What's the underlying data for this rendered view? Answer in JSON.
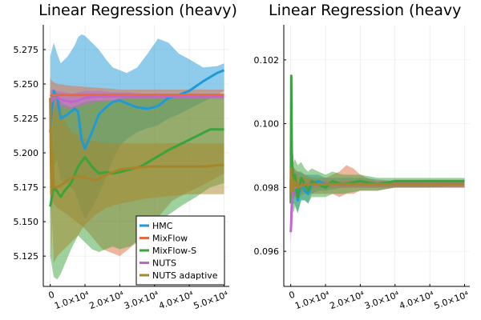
{
  "colors": {
    "HMC": "#1f9ad9",
    "MixFlow": "#e26b3f",
    "MixFlow-S": "#3ba33b",
    "NUTS": "#c264cf",
    "NUTS adaptive": "#a7852a"
  },
  "chart_data": [
    {
      "type": "line",
      "title": "Linear Regression (heavy)",
      "xlim": [
        -2000,
        51500
      ],
      "ylim": [
        5.103,
        5.293
      ],
      "x_ticks": [
        0,
        10000,
        20000,
        30000,
        40000,
        50000
      ],
      "x_tick_labels": [
        "0",
        "1.0×10⁴",
        "2.0×10⁴",
        "3.0×10⁴",
        "4.0×10⁴",
        "5.0×10⁴"
      ],
      "y_ticks": [
        5.125,
        5.15,
        5.175,
        5.2,
        5.225,
        5.25,
        5.275
      ],
      "y_tick_labels": [
        "5.125",
        "5.150",
        "5.175",
        "5.200",
        "5.225",
        "5.250",
        "5.275"
      ],
      "grid": true,
      "legend": "bottom-right",
      "series": [
        {
          "name": "HMC",
          "x": [
            0,
            500,
            1000,
            2000,
            3000,
            5000,
            7000,
            8000,
            9000,
            10000,
            12000,
            14000,
            16000,
            18000,
            20000,
            22000,
            25000,
            28000,
            31000,
            34000,
            37000,
            40000,
            44000,
            48000,
            50000
          ],
          "y": [
            5.215,
            5.23,
            5.245,
            5.24,
            5.225,
            5.228,
            5.232,
            5.23,
            5.21,
            5.203,
            5.215,
            5.228,
            5.233,
            5.237,
            5.238,
            5.236,
            5.233,
            5.232,
            5.234,
            5.24,
            5.242,
            5.245,
            5.252,
            5.258,
            5.26
          ],
          "lower": [
            5.15,
            5.175,
            5.19,
            5.195,
            5.18,
            5.178,
            5.172,
            5.165,
            5.158,
            5.152,
            5.16,
            5.17,
            5.182,
            5.195,
            5.205,
            5.21,
            5.215,
            5.218,
            5.22,
            5.225,
            5.228,
            5.232,
            5.237,
            5.242,
            5.245
          ],
          "upper": [
            5.27,
            5.275,
            5.28,
            5.272,
            5.265,
            5.27,
            5.278,
            5.284,
            5.286,
            5.285,
            5.28,
            5.275,
            5.268,
            5.262,
            5.26,
            5.258,
            5.262,
            5.272,
            5.283,
            5.28,
            5.272,
            5.268,
            5.262,
            5.263,
            5.265
          ]
        },
        {
          "name": "MixFlow",
          "x": [
            0,
            500,
            2000,
            5000,
            10000,
            15000,
            20000,
            25000,
            30000,
            35000,
            40000,
            45000,
            50000
          ],
          "y": [
            5.241,
            5.242,
            5.242,
            5.242,
            5.242,
            5.242,
            5.242,
            5.242,
            5.242,
            5.242,
            5.242,
            5.242,
            5.242
          ],
          "lower": [
            5.17,
            5.165,
            5.16,
            5.155,
            5.145,
            5.13,
            5.125,
            5.135,
            5.15,
            5.165,
            5.172,
            5.178,
            5.185
          ],
          "upper": [
            5.255,
            5.252,
            5.25,
            5.249,
            5.248,
            5.247,
            5.246,
            5.246,
            5.246,
            5.246,
            5.246,
            5.246,
            5.246
          ]
        },
        {
          "name": "MixFlow-S",
          "x": [
            0,
            1000,
            2000,
            3000,
            4000,
            6000,
            8000,
            10000,
            12000,
            14000,
            16000,
            18000,
            20000,
            23000,
            26000,
            30000,
            34000,
            38000,
            42000,
            46000,
            50000
          ],
          "y": [
            5.161,
            5.175,
            5.172,
            5.168,
            5.172,
            5.178,
            5.19,
            5.197,
            5.19,
            5.185,
            5.186,
            5.185,
            5.186,
            5.188,
            5.19,
            5.196,
            5.202,
            5.207,
            5.212,
            5.217,
            5.217
          ],
          "lower": [
            5.125,
            5.11,
            5.108,
            5.112,
            5.118,
            5.13,
            5.14,
            5.135,
            5.13,
            5.128,
            5.13,
            5.132,
            5.13,
            5.132,
            5.138,
            5.148,
            5.155,
            5.162,
            5.168,
            5.175,
            5.178
          ],
          "upper": [
            5.2,
            5.23,
            5.24,
            5.237,
            5.235,
            5.233,
            5.235,
            5.237,
            5.238,
            5.238,
            5.238,
            5.238,
            5.24,
            5.24,
            5.24,
            5.24,
            5.24,
            5.241,
            5.242,
            5.242,
            5.242
          ]
        },
        {
          "name": "NUTS",
          "x": [
            0,
            500,
            1000,
            2000,
            4000,
            6000,
            8000,
            10000,
            14000,
            18000,
            22000,
            26000,
            30000,
            35000,
            40000,
            45000,
            50000
          ],
          "y": [
            5.236,
            5.238,
            5.24,
            5.24,
            5.238,
            5.237,
            5.238,
            5.24,
            5.241,
            5.241,
            5.241,
            5.241,
            5.241,
            5.241,
            5.241,
            5.241,
            5.241
          ],
          "lower": [
            5.225,
            5.229,
            5.232,
            5.234,
            5.233,
            5.232,
            5.233,
            5.235,
            5.237,
            5.238,
            5.239,
            5.239,
            5.239,
            5.239,
            5.239,
            5.239,
            5.239
          ],
          "upper": [
            5.245,
            5.246,
            5.246,
            5.245,
            5.244,
            5.243,
            5.244,
            5.245,
            5.245,
            5.244,
            5.244,
            5.243,
            5.243,
            5.243,
            5.243,
            5.243,
            5.243
          ]
        },
        {
          "name": "NUTS adaptive",
          "x": [
            0,
            300,
            600,
            1000,
            2000,
            4000,
            6000,
            8000,
            10000,
            13000,
            16000,
            20000,
            24000,
            28000,
            32000,
            36000,
            40000,
            44000,
            48000,
            50000
          ],
          "y": [
            5.24,
            5.17,
            5.2,
            5.175,
            5.175,
            5.178,
            5.182,
            5.183,
            5.182,
            5.18,
            5.184,
            5.188,
            5.189,
            5.19,
            5.19,
            5.19,
            5.19,
            5.19,
            5.191,
            5.191
          ],
          "lower": [
            5.22,
            5.12,
            5.15,
            5.12,
            5.125,
            5.13,
            5.135,
            5.14,
            5.148,
            5.155,
            5.16,
            5.163,
            5.165,
            5.167,
            5.168,
            5.169,
            5.17,
            5.17,
            5.17,
            5.17
          ],
          "upper": [
            5.255,
            5.22,
            5.242,
            5.245,
            5.24,
            5.225,
            5.215,
            5.213,
            5.21,
            5.208,
            5.207,
            5.207,
            5.207,
            5.207,
            5.207,
            5.207,
            5.207,
            5.207,
            5.207,
            5.207
          ]
        }
      ]
    },
    {
      "type": "line",
      "title": "Linear Regression (heavy",
      "xlim": [
        -2000,
        51500
      ],
      "ylim": [
        0.0949,
        0.1031
      ],
      "x_ticks": [
        0,
        10000,
        20000,
        30000,
        40000,
        50000
      ],
      "x_tick_labels": [
        "0",
        "1.0×10⁴",
        "2.0×10⁴",
        "3.0×10⁴",
        "4.0×10⁴",
        "5.0×10⁴"
      ],
      "y_ticks": [
        0.096,
        0.098,
        0.1,
        0.102
      ],
      "y_tick_labels": [
        "0.096",
        "0.098",
        "0.100",
        "0.102"
      ],
      "grid": true,
      "legend": "none",
      "series": [
        {
          "name": "HMC",
          "x": [
            0,
            100,
            200,
            400,
            700,
            1000,
            1500,
            2000,
            3000,
            4000,
            5000,
            6000,
            8000,
            10000,
            15000,
            20000,
            30000,
            40000,
            50000
          ],
          "y": [
            0.0978,
            0.0985,
            0.098,
            0.0975,
            0.0982,
            0.0979,
            0.098,
            0.0976,
            0.0981,
            0.0979,
            0.0978,
            0.0981,
            0.0982,
            0.0981,
            0.0981,
            0.0981,
            0.0981,
            0.0981,
            0.0981
          ],
          "lower": [
            0.0972,
            0.097,
            0.0968,
            0.0972,
            0.0975,
            0.0975,
            0.0974,
            0.0972,
            0.0976,
            0.0976,
            0.0975,
            0.0978,
            0.0979,
            0.0979,
            0.098,
            0.098,
            0.098,
            0.098,
            0.098
          ],
          "upper": [
            0.0992,
            0.0995,
            0.099,
            0.0988,
            0.0987,
            0.0986,
            0.0985,
            0.0985,
            0.0985,
            0.0984,
            0.0984,
            0.0984,
            0.0984,
            0.0983,
            0.0983,
            0.0983,
            0.0982,
            0.0982,
            0.0982
          ]
        },
        {
          "name": "MixFlow",
          "x": [
            0,
            200,
            500,
            1000,
            2000,
            4000,
            6000,
            8000,
            10000,
            12000,
            14000,
            16000,
            18000,
            20000,
            22000,
            25000,
            30000,
            35000,
            40000,
            45000,
            50000
          ],
          "y": [
            0.0981,
            0.0981,
            0.0981,
            0.0981,
            0.0981,
            0.0981,
            0.0981,
            0.0981,
            0.0981,
            0.0981,
            0.0981,
            0.0981,
            0.0981,
            0.0981,
            0.0981,
            0.0981,
            0.0981,
            0.0981,
            0.0981,
            0.0981,
            0.0981
          ],
          "lower": [
            0.0965,
            0.0972,
            0.0975,
            0.0977,
            0.0977,
            0.0978,
            0.0978,
            0.0978,
            0.0978,
            0.0978,
            0.0977,
            0.0978,
            0.0978,
            0.0979,
            0.0979,
            0.0979,
            0.098,
            0.098,
            0.098,
            0.098,
            0.098
          ],
          "upper": [
            0.0995,
            0.099,
            0.0987,
            0.0986,
            0.0985,
            0.0984,
            0.0983,
            0.0983,
            0.0983,
            0.0984,
            0.0985,
            0.0987,
            0.0986,
            0.0984,
            0.0983,
            0.0982,
            0.0982,
            0.0982,
            0.0982,
            0.0982,
            0.0982
          ]
        },
        {
          "name": "MixFlow-S",
          "x": [
            0,
            150,
            300,
            500,
            800,
            1200,
            2000,
            3000,
            4000,
            5000,
            6000,
            8000,
            10000,
            12000,
            15000,
            20000,
            25000,
            30000,
            40000,
            50000
          ],
          "y": [
            0.0975,
            0.1015,
            0.0992,
            0.0985,
            0.0978,
            0.0984,
            0.0977,
            0.0983,
            0.0981,
            0.0979,
            0.0982,
            0.0981,
            0.098,
            0.0982,
            0.0981,
            0.0982,
            0.0981,
            0.0982,
            0.0982,
            0.0982
          ],
          "lower": [
            0.0965,
            0.0975,
            0.097,
            0.0973,
            0.0972,
            0.0974,
            0.0972,
            0.0976,
            0.0976,
            0.0975,
            0.0977,
            0.0977,
            0.0977,
            0.0978,
            0.0978,
            0.0979,
            0.0979,
            0.098,
            0.098,
            0.0981
          ],
          "upper": [
            0.0995,
            0.1014,
            0.1,
            0.0994,
            0.0988,
            0.0989,
            0.0987,
            0.0988,
            0.0986,
            0.0985,
            0.0986,
            0.0985,
            0.0984,
            0.0985,
            0.0984,
            0.0984,
            0.0983,
            0.0983,
            0.0983,
            0.0983
          ]
        },
        {
          "name": "NUTS",
          "x": [
            0,
            100,
            300,
            600,
            1000,
            2000,
            4000,
            8000,
            15000,
            25000,
            35000,
            50000
          ],
          "y": [
            0.0966,
            0.0968,
            0.0975,
            0.0978,
            0.098,
            0.098,
            0.0981,
            0.0981,
            0.0981,
            0.0981,
            0.0981,
            0.0981
          ],
          "lower": [
            0.0963,
            0.0964,
            0.0972,
            0.0976,
            0.0978,
            0.0979,
            0.098,
            0.098,
            0.098,
            0.098,
            0.098,
            0.098
          ],
          "upper": [
            0.0969,
            0.0972,
            0.0978,
            0.098,
            0.0982,
            0.0982,
            0.0982,
            0.0982,
            0.0982,
            0.0982,
            0.0982,
            0.0982
          ]
        },
        {
          "name": "NUTS adaptive",
          "x": [
            0,
            100,
            200,
            400,
            700,
            1000,
            2000,
            4000,
            8000,
            15000,
            25000,
            35000,
            50000
          ],
          "y": [
            0.0978,
            0.0986,
            0.098,
            0.0983,
            0.0979,
            0.0982,
            0.098,
            0.0981,
            0.0981,
            0.0981,
            0.0981,
            0.0981,
            0.0981
          ],
          "lower": [
            0.0972,
            0.0978,
            0.0976,
            0.0978,
            0.0976,
            0.0978,
            0.0978,
            0.0979,
            0.098,
            0.098,
            0.098,
            0.098,
            0.098
          ],
          "upper": [
            0.0984,
            0.099,
            0.0985,
            0.0987,
            0.0983,
            0.0985,
            0.0983,
            0.0983,
            0.0982,
            0.0982,
            0.0982,
            0.0982,
            0.0982
          ]
        }
      ]
    }
  ]
}
